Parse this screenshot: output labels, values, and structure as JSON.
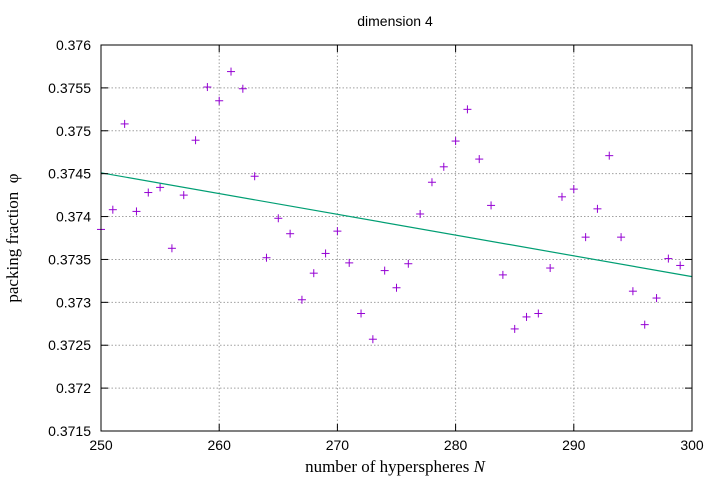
{
  "chart_data": {
    "type": "scatter",
    "title": "dimension 4",
    "xlabel_text": "number of hyperspheres ",
    "xlabel_var": "N",
    "ylabel_text": "packing fraction  ",
    "ylabel_var": "φ",
    "xlim": [
      250,
      300
    ],
    "ylim": [
      0.3715,
      0.376
    ],
    "grid": true,
    "x_ticks": [
      250,
      260,
      270,
      280,
      290,
      300
    ],
    "x_tick_labels": [
      "250",
      "260",
      "270",
      "280",
      "290",
      "300"
    ],
    "y_ticks": [
      0.3715,
      0.372,
      0.3725,
      0.373,
      0.3735,
      0.374,
      0.3745,
      0.375,
      0.3755,
      0.376
    ],
    "y_tick_labels": [
      "0.3715",
      "0.372",
      "0.3725",
      "0.373",
      "0.3735",
      "0.374",
      "0.3745",
      "0.375",
      "0.3755",
      "0.376"
    ],
    "series": [
      {
        "kind": "points",
        "marker": "+",
        "color": "#9400d3",
        "x": [
          250,
          251,
          252,
          253,
          254,
          255,
          256,
          257,
          258,
          259,
          260,
          261,
          262,
          263,
          264,
          265,
          266,
          267,
          268,
          269,
          270,
          271,
          272,
          273,
          274,
          275,
          276,
          277,
          278,
          279,
          280,
          281,
          282,
          283,
          284,
          285,
          286,
          287,
          288,
          289,
          290,
          291,
          292,
          293,
          294,
          295,
          296,
          297,
          298,
          299
        ],
        "y": [
          0.37385,
          0.37408,
          0.37508,
          0.37406,
          0.37428,
          0.37434,
          0.37363,
          0.37425,
          0.37489,
          0.37551,
          0.37535,
          0.37569,
          0.37549,
          0.37447,
          0.37352,
          0.37398,
          0.3738,
          0.37303,
          0.37334,
          0.37357,
          0.37383,
          0.37346,
          0.37287,
          0.37257,
          0.37337,
          0.37317,
          0.37345,
          0.37403,
          0.3744,
          0.37458,
          0.37488,
          0.37525,
          0.37467,
          0.37413,
          0.37332,
          0.37269,
          0.37283,
          0.37287,
          0.3734,
          0.37423,
          0.37432,
          0.37376,
          0.37409,
          0.37471,
          0.37376,
          0.37313,
          0.37274,
          0.37305,
          0.37351,
          0.37343
        ]
      },
      {
        "kind": "line",
        "color": "#009e73",
        "x": [
          250,
          300
        ],
        "y": [
          0.37451,
          0.3733
        ]
      }
    ]
  }
}
